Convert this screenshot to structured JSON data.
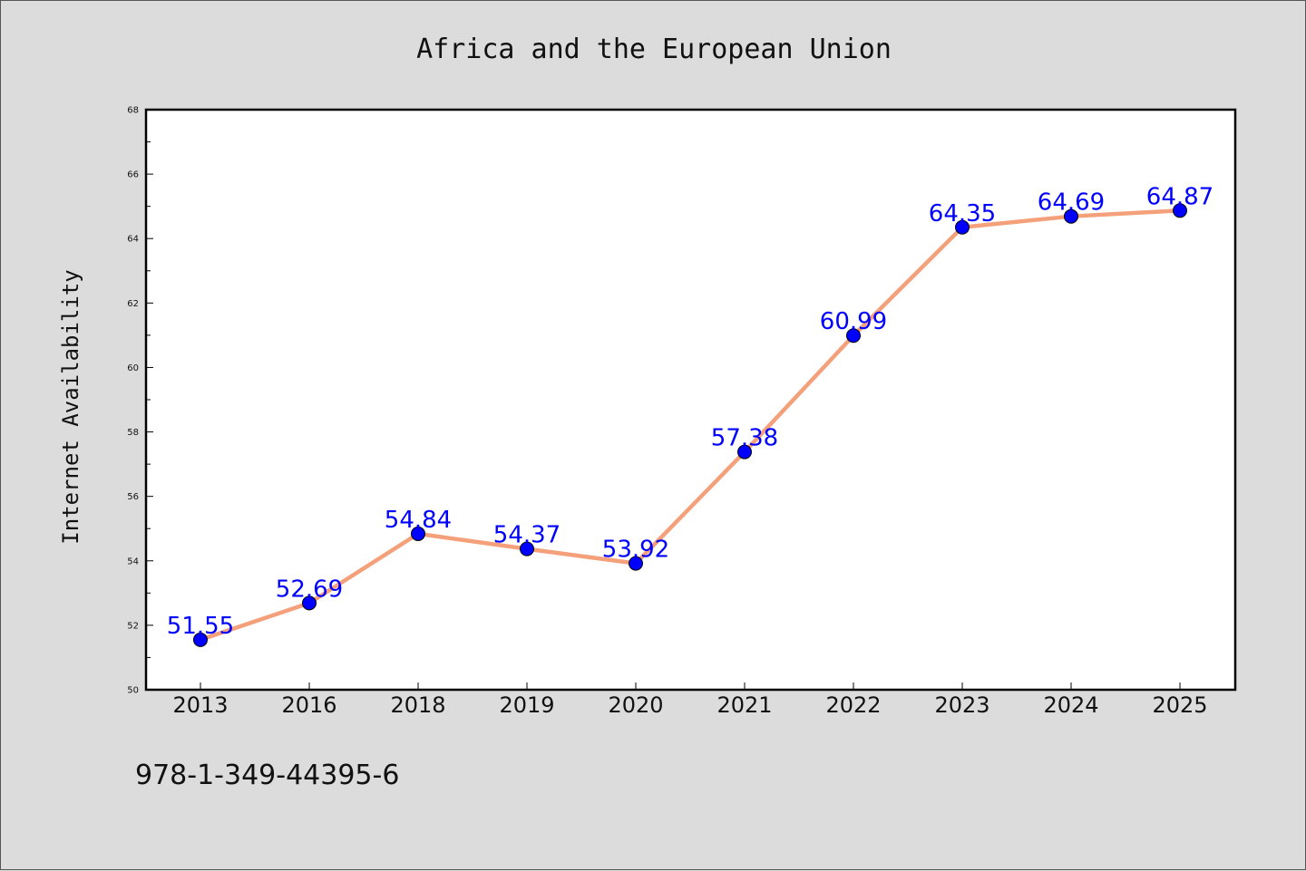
{
  "footer_text": "978-1-349-44395-6",
  "chart_data": {
    "type": "line",
    "title": "Africa and the European Union",
    "xlabel": "",
    "ylabel": "Internet Availability",
    "categories": [
      "2013",
      "2016",
      "2018",
      "2019",
      "2020",
      "2021",
      "2022",
      "2023",
      "2024",
      "2025"
    ],
    "series": [
      {
        "values": [
          51.55,
          52.69,
          54.84,
          54.37,
          53.92,
          57.38,
          60.99,
          64.35,
          64.69,
          64.87
        ],
        "data_labels": [
          "51.55",
          "52.69",
          "54.84",
          "54.37",
          "53.92",
          "57.38",
          "60.99",
          "64.35",
          "64.69",
          "64.87"
        ],
        "line_color": "#f4a07a",
        "marker_color": "#0000ff"
      }
    ],
    "ylim": [
      50,
      68
    ],
    "yticks": [
      "50",
      "52",
      "54",
      "56",
      "58",
      "60",
      "62",
      "64",
      "66",
      "68"
    ],
    "grid": false,
    "legend": "none"
  }
}
